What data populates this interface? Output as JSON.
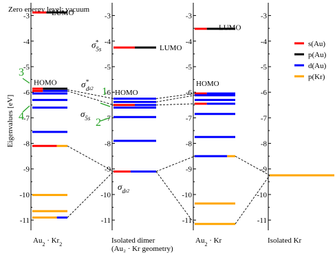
{
  "chart_data": {
    "type": "energy-level diagram",
    "title": "Zero energy level: vacuum",
    "ylabel": "Eigenvalues [eV]",
    "ylim": [
      -11.4,
      -2.5
    ],
    "y_ticks": [
      -3,
      -4,
      -5,
      -6,
      -7,
      -8,
      -9,
      -10,
      -11
    ],
    "legend": {
      "position": "top-right",
      "items": [
        {
          "label": "s(Au)",
          "color": "#ff0000"
        },
        {
          "label": "p(Au)",
          "color": "#000000"
        },
        {
          "label": "d(Au)",
          "color": "#0000ff"
        },
        {
          "label": "p(Kr)",
          "color": "#ffa500"
        }
      ]
    },
    "columns": [
      {
        "id": "au2kr2",
        "label_html": "Au<tspan baseline-shift=\"sub\" font-size=\"8\">2</tspan> · Kr<tspan baseline-shift=\"sub\" font-size=\"8\">2</tspan>",
        "label_lines": [
          "Au2 · Kr2"
        ],
        "levels": [
          {
            "energy": -2.88,
            "segments": [
              {
                "color": "#ff0000",
                "frac": 0.4
              },
              {
                "color": "#000000",
                "frac": 0.6
              }
            ]
          },
          {
            "energy": -5.86,
            "segments": [
              {
                "color": "#ff0000",
                "frac": 0.3
              },
              {
                "color": "#000000",
                "frac": 0.7
              }
            ]
          },
          {
            "energy": -5.95,
            "segments": [
              {
                "color": "#ff0000",
                "frac": 0.3
              },
              {
                "color": "#0000ff",
                "frac": 0.7
              }
            ]
          },
          {
            "energy": -6.05,
            "segments": [
              {
                "color": "#0000ff",
                "frac": 1.0
              }
            ]
          },
          {
            "energy": -6.3,
            "segments": [
              {
                "color": "#0000ff",
                "frac": 1.0
              }
            ]
          },
          {
            "energy": -6.6,
            "segments": [
              {
                "color": "#0000ff",
                "frac": 1.0
              }
            ]
          },
          {
            "energy": -7.55,
            "segments": [
              {
                "color": "#0000ff",
                "frac": 1.0
              }
            ]
          },
          {
            "energy": -8.1,
            "segments": [
              {
                "color": "#ff0000",
                "frac": 0.7
              },
              {
                "color": "#ffa500",
                "frac": 0.3
              }
            ]
          },
          {
            "energy": -10.02,
            "segments": [
              {
                "color": "#ffa500",
                "frac": 1.0
              }
            ]
          },
          {
            "energy": -10.65,
            "segments": [
              {
                "color": "#ffa500",
                "frac": 1.0
              }
            ]
          },
          {
            "energy": -10.9,
            "segments": [
              {
                "color": "#ffa500",
                "frac": 0.7
              },
              {
                "color": "#0000ff",
                "frac": 0.3
              }
            ]
          }
        ],
        "labels": [
          {
            "text": "LUMO",
            "energy": -2.88
          },
          {
            "text": "HOMO",
            "energy": -5.6
          }
        ]
      },
      {
        "id": "dimer",
        "label_lines": [
          "Isolated dimer",
          "(Au₂ · Kr geometry)"
        ],
        "levels": [
          {
            "energy": -4.25,
            "segments": [
              {
                "color": "#ff0000",
                "frac": 0.5
              },
              {
                "color": "#000000",
                "frac": 0.5
              }
            ]
          },
          {
            "energy": -6.25,
            "segments": [
              {
                "color": "#0000ff",
                "frac": 1.0
              }
            ]
          },
          {
            "energy": -6.38,
            "segments": [
              {
                "color": "#0000ff",
                "frac": 1.0
              }
            ]
          },
          {
            "energy": -6.5,
            "segments": [
              {
                "color": "#ff0000",
                "frac": 0.5
              },
              {
                "color": "#0000ff",
                "frac": 0.5
              }
            ]
          },
          {
            "energy": -6.6,
            "segments": [
              {
                "color": "#0000ff",
                "frac": 1.0
              }
            ]
          },
          {
            "energy": -6.97,
            "segments": [
              {
                "color": "#0000ff",
                "frac": 1.0
              }
            ]
          },
          {
            "energy": -7.9,
            "segments": [
              {
                "color": "#0000ff",
                "frac": 1.0
              }
            ]
          },
          {
            "energy": -9.1,
            "segments": [
              {
                "color": "#ff0000",
                "frac": 0.4
              },
              {
                "color": "#0000ff",
                "frac": 0.6
              }
            ]
          }
        ],
        "labels": [
          {
            "text": "LUMO",
            "energy": -4.25
          },
          {
            "text": "HOMO",
            "energy": -6.0
          }
        ]
      },
      {
        "id": "au2kr",
        "label_html": "Au<tspan baseline-shift=\"sub\" font-size=\"8\">2</tspan> · Kr",
        "label_lines": [
          "Au2 · Kr"
        ],
        "levels": [
          {
            "energy": -3.52,
            "segments": [
              {
                "color": "#ff0000",
                "frac": 0.3
              },
              {
                "color": "#000000",
                "frac": 0.7
              }
            ]
          },
          {
            "energy": -6.05,
            "segments": [
              {
                "color": "#ff0000",
                "frac": 0.3
              },
              {
                "color": "#0000ff",
                "frac": 0.7
              }
            ]
          },
          {
            "energy": -6.12,
            "segments": [
              {
                "color": "#0000ff",
                "frac": 1.0
              }
            ]
          },
          {
            "energy": -6.3,
            "segments": [
              {
                "color": "#0000ff",
                "frac": 1.0
              }
            ]
          },
          {
            "energy": -6.45,
            "segments": [
              {
                "color": "#ff0000",
                "frac": 0.3
              },
              {
                "color": "#0000ff",
                "frac": 0.7
              }
            ]
          },
          {
            "energy": -6.85,
            "segments": [
              {
                "color": "#0000ff",
                "frac": 1.0
              }
            ]
          },
          {
            "energy": -7.75,
            "segments": [
              {
                "color": "#0000ff",
                "frac": 1.0
              }
            ]
          },
          {
            "energy": -8.5,
            "segments": [
              {
                "color": "#0000ff",
                "frac": 0.8
              },
              {
                "color": "#ffa500",
                "frac": 0.2
              }
            ]
          },
          {
            "energy": -10.35,
            "segments": [
              {
                "color": "#ffa500",
                "frac": 1.0
              }
            ]
          },
          {
            "energy": -11.15,
            "segments": [
              {
                "color": "#ffa500",
                "frac": 1.0
              }
            ]
          }
        ],
        "labels": [
          {
            "text": "LUMO",
            "energy": -3.45
          },
          {
            "text": "HOMO",
            "energy": -5.65
          }
        ]
      },
      {
        "id": "kr",
        "label_lines": [
          "Isolated Kr"
        ],
        "levels": [
          {
            "energy": -9.25,
            "segments": [
              {
                "color": "#ffa500",
                "frac": 1.0
              }
            ]
          }
        ],
        "labels": []
      }
    ],
    "connectors": [
      {
        "from": [
          "au2kr2",
          -5.9
        ],
        "to": [
          "dimer",
          -6.25
        ]
      },
      {
        "from": [
          "au2kr2",
          -5.95
        ],
        "to": [
          "dimer",
          -6.5
        ]
      },
      {
        "from": [
          "au2kr2",
          -8.1
        ],
        "to": [
          "dimer",
          -9.1
        ]
      },
      {
        "from": [
          "au2kr2",
          -10.9
        ],
        "to": [
          "dimer",
          -9.1
        ]
      },
      {
        "from": [
          "dimer",
          -6.25
        ],
        "to": [
          "au2kr",
          -6.05
        ]
      },
      {
        "from": [
          "dimer",
          -6.38
        ],
        "to": [
          "au2kr",
          -6.12
        ]
      },
      {
        "from": [
          "dimer",
          -6.5
        ],
        "to": [
          "au2kr",
          -6.45
        ]
      },
      {
        "from": [
          "dimer",
          -9.1
        ],
        "to": [
          "au2kr",
          -8.5
        ]
      },
      {
        "from": [
          "dimer",
          -9.1
        ],
        "to": [
          "au2kr",
          -11.15
        ]
      },
      {
        "from": [
          "au2kr",
          -8.5
        ],
        "to": [
          "kr",
          -9.25
        ]
      },
      {
        "from": [
          "au2kr",
          -11.15
        ],
        "to": [
          "kr",
          -9.25
        ]
      }
    ],
    "orbital_labels": [
      {
        "id": "sigma5s-star",
        "html": "σ<tspan baseline-shift=\"sub\" font-size=\"9\">5s</tspan><tspan dx=\"-9\" baseline-shift=\"super\" font-size=\"9\">*</tspan>",
        "energy": -4.1
      },
      {
        "id": "sigma-dz2-star",
        "html": "σ<tspan baseline-shift=\"super\" font-size=\"9\">*</tspan><tspan dx=\"-4\" baseline-shift=\"sub\" font-size=\"9\">d</tspan><tspan baseline-shift=\"sub\" font-size=\"7\">z2</tspan>",
        "energy": -5.8
      },
      {
        "id": "sigma5s",
        "html": "σ<tspan baseline-shift=\"sub\" font-size=\"9\">5s</tspan>",
        "energy": -6.85
      },
      {
        "id": "sigma-dz2",
        "html": "σ<tspan baseline-shift=\"sub\" font-size=\"9\">d</tspan><tspan baseline-shift=\"sub\" font-size=\"7\">z2</tspan>",
        "energy": -9.7
      }
    ],
    "green_markers": [
      {
        "text": "3",
        "color": "#22a022"
      },
      {
        "text": "4",
        "color": "#22a022"
      },
      {
        "text": "1",
        "color": "#22a022"
      },
      {
        "text": "2",
        "color": "#22a022"
      }
    ]
  }
}
